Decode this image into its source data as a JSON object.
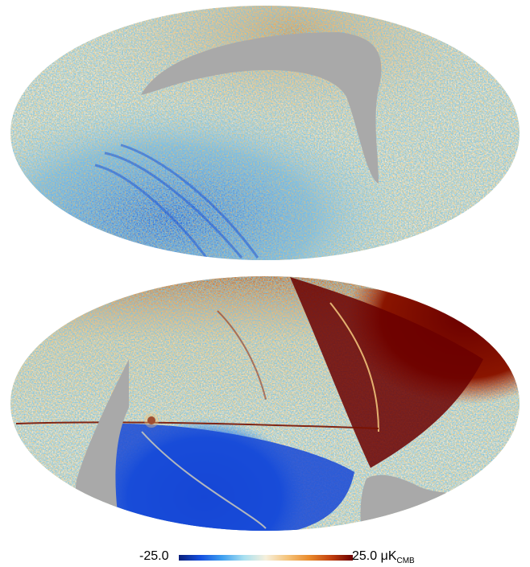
{
  "colorbar": {
    "min_label": "-25.0",
    "max_value": "25.0",
    "unit_main": "μK",
    "unit_sub": "CMB",
    "colormap": [
      "#0a1f7a",
      "#1550e0",
      "#3fa0f0",
      "#a9e0f0",
      "#f6f0dc",
      "#f5c37a",
      "#e98a2c",
      "#c2400f",
      "#6b0000"
    ]
  },
  "maps": [
    {
      "id": "top",
      "projection": "mollweide",
      "mask_color": "#a9a9a9"
    },
    {
      "id": "bottom",
      "projection": "mollweide",
      "mask_color": "#a9a9a9"
    }
  ]
}
